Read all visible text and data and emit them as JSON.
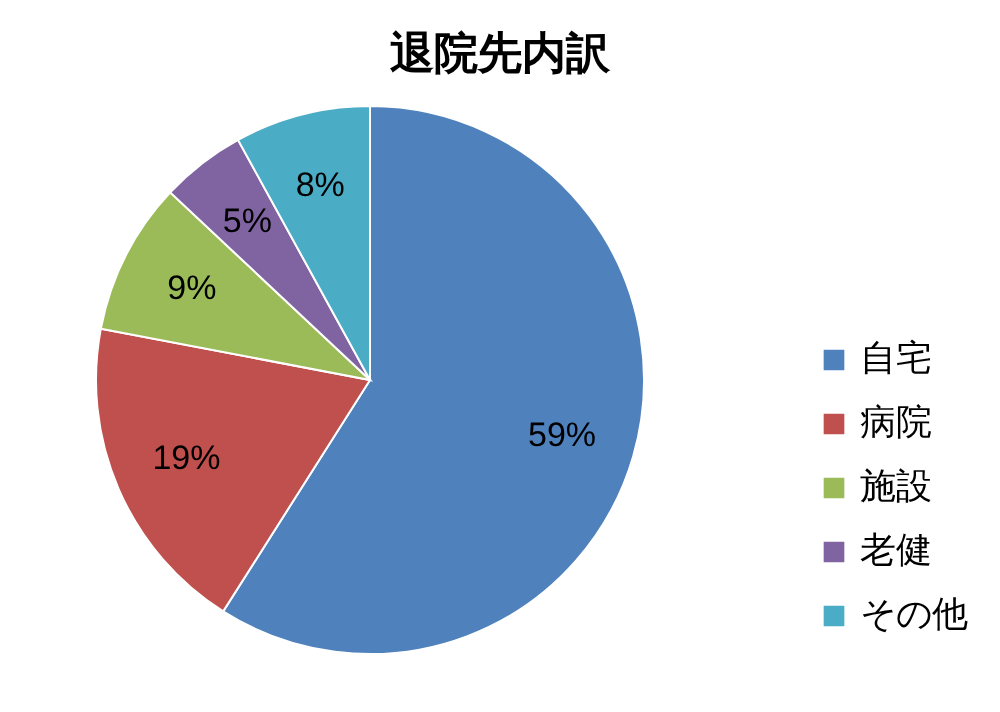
{
  "chart_data": {
    "type": "pie",
    "title": "退院先内訳",
    "categories": [
      "自宅",
      "病院",
      "施設",
      "老健",
      "その他"
    ],
    "values": [
      59,
      19,
      9,
      5,
      8
    ],
    "colors": [
      "#4f81bd",
      "#c0504d",
      "#9bbb59",
      "#8064a2",
      "#4bacc6"
    ],
    "value_labels": [
      "59%",
      "19%",
      "9%",
      "5%",
      "8%"
    ],
    "legend": "right"
  }
}
